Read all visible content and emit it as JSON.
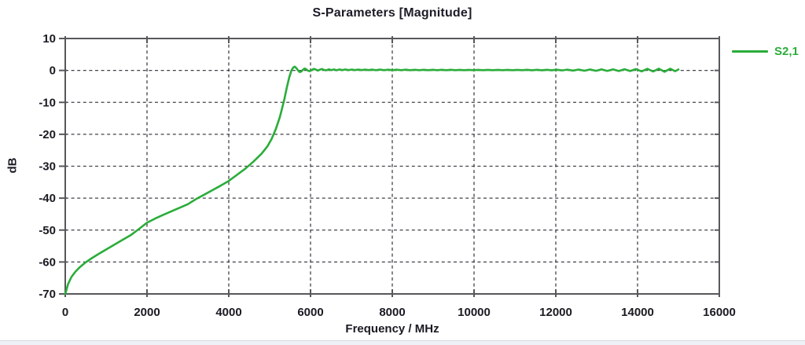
{
  "window": {
    "background": "#ffffff"
  },
  "chart_data": {
    "type": "line",
    "title": "S-Parameters [Magnitude]",
    "xlabel": "Frequency / MHz",
    "ylabel": "dB",
    "xlim": [
      0,
      16000
    ],
    "ylim": [
      -70,
      10
    ],
    "xticks": [
      0,
      2000,
      4000,
      6000,
      8000,
      10000,
      12000,
      14000,
      16000
    ],
    "yticks": [
      10,
      0,
      -10,
      -20,
      -30,
      -40,
      -50,
      -60,
      -70
    ],
    "grid": "dashed",
    "grid_color": "#2e2e36",
    "border_color": "#58585c",
    "legend": {
      "position": "top-right",
      "entries": [
        {
          "label": "S2,1",
          "color": "#2aad3a"
        }
      ]
    },
    "series": [
      {
        "name": "S2,1",
        "color": "#2aad3a",
        "points": [
          [
            0,
            -70
          ],
          [
            70,
            -66.9
          ],
          [
            150,
            -64.7
          ],
          [
            250,
            -63
          ],
          [
            350,
            -61.7
          ],
          [
            500,
            -60.1
          ],
          [
            650,
            -58.8
          ],
          [
            800,
            -57.6
          ],
          [
            1000,
            -56.1
          ],
          [
            1200,
            -54.6
          ],
          [
            1400,
            -53.1
          ],
          [
            1600,
            -51.6
          ],
          [
            1800,
            -49.7
          ],
          [
            2000,
            -47.7
          ],
          [
            2200,
            -46.4
          ],
          [
            2400,
            -45.2
          ],
          [
            2600,
            -44.1
          ],
          [
            2800,
            -43
          ],
          [
            3000,
            -41.9
          ],
          [
            3200,
            -40.3
          ],
          [
            3400,
            -38.9
          ],
          [
            3600,
            -37.5
          ],
          [
            3800,
            -36.1
          ],
          [
            4000,
            -34.6
          ],
          [
            4200,
            -32.7
          ],
          [
            4400,
            -30.8
          ],
          [
            4600,
            -28.6
          ],
          [
            4800,
            -26.1
          ],
          [
            4950,
            -23.7
          ],
          [
            5050,
            -21.4
          ],
          [
            5150,
            -18.4
          ],
          [
            5250,
            -14.6
          ],
          [
            5350,
            -9.6
          ],
          [
            5420,
            -5.4
          ],
          [
            5480,
            -2.1
          ],
          [
            5530,
            -0.1
          ],
          [
            5575,
            0.9
          ],
          [
            5615,
            1.2
          ],
          [
            5655,
            0.7
          ],
          [
            5695,
            0
          ],
          [
            5735,
            -0.5
          ],
          [
            5775,
            -0.35
          ],
          [
            5815,
            0.2
          ],
          [
            5855,
            0.6
          ],
          [
            5895,
            0.35
          ],
          [
            5940,
            -0.1
          ],
          [
            5985,
            -0.25
          ],
          [
            6030,
            0.15
          ],
          [
            6080,
            0.5
          ],
          [
            6130,
            0.25
          ],
          [
            6180,
            -0.05
          ],
          [
            6230,
            0.25
          ],
          [
            6280,
            0.45
          ],
          [
            6330,
            0.15
          ],
          [
            6390,
            0.05
          ],
          [
            6450,
            0.35
          ],
          [
            6510,
            0.1
          ],
          [
            6570,
            0.3
          ],
          [
            6640,
            0.05
          ],
          [
            6710,
            0.3
          ],
          [
            6780,
            0.1
          ],
          [
            6850,
            0.3
          ],
          [
            6930,
            0.1
          ],
          [
            7010,
            0.28
          ],
          [
            7090,
            0.1
          ],
          [
            7170,
            0.28
          ],
          [
            7250,
            0.1
          ],
          [
            7330,
            0.25
          ],
          [
            7420,
            0.1
          ],
          [
            7510,
            0.25
          ],
          [
            7600,
            0.08
          ],
          [
            7700,
            0.25
          ],
          [
            7800,
            0.08
          ],
          [
            7900,
            0.22
          ],
          [
            8000,
            0.08
          ],
          [
            8110,
            0.22
          ],
          [
            8220,
            0.08
          ],
          [
            8330,
            0.22
          ],
          [
            8440,
            0.08
          ],
          [
            8550,
            0.2
          ],
          [
            8660,
            0.08
          ],
          [
            8770,
            0.2
          ],
          [
            8880,
            0.08
          ],
          [
            8990,
            0.2
          ],
          [
            9100,
            0.08
          ],
          [
            9210,
            0.2
          ],
          [
            9320,
            0.08
          ],
          [
            9430,
            0.2
          ],
          [
            9540,
            0.08
          ],
          [
            9650,
            0.18
          ],
          [
            9760,
            0.08
          ],
          [
            9870,
            0.18
          ],
          [
            9980,
            0.08
          ],
          [
            10100,
            0.18
          ],
          [
            10220,
            0.08
          ],
          [
            10340,
            0.18
          ],
          [
            10460,
            0.08
          ],
          [
            10580,
            0.18
          ],
          [
            10700,
            0.08
          ],
          [
            10820,
            0.18
          ],
          [
            10940,
            0.08
          ],
          [
            11060,
            0.18
          ],
          [
            11180,
            0.08
          ],
          [
            11300,
            0.2
          ],
          [
            11420,
            0.05
          ],
          [
            11540,
            0.2
          ],
          [
            11660,
            0.05
          ],
          [
            11780,
            0.2
          ],
          [
            11900,
            0.05
          ],
          [
            12020,
            0.22
          ],
          [
            12150,
            0
          ],
          [
            12280,
            0.25
          ],
          [
            12420,
            -0.05
          ],
          [
            12560,
            0.28
          ],
          [
            12700,
            -0.1
          ],
          [
            12840,
            0.3
          ],
          [
            12980,
            -0.12
          ],
          [
            13120,
            0.32
          ],
          [
            13260,
            -0.15
          ],
          [
            13400,
            0.35
          ],
          [
            13540,
            -0.18
          ],
          [
            13680,
            0.38
          ],
          [
            13820,
            -0.2
          ],
          [
            13960,
            0.42
          ],
          [
            14100,
            -0.28
          ],
          [
            14240,
            0.5
          ],
          [
            14380,
            -0.35
          ],
          [
            14520,
            0.55
          ],
          [
            14660,
            -0.4
          ],
          [
            14800,
            0.55
          ],
          [
            14920,
            -0.25
          ],
          [
            15000,
            0.3
          ]
        ]
      }
    ]
  }
}
